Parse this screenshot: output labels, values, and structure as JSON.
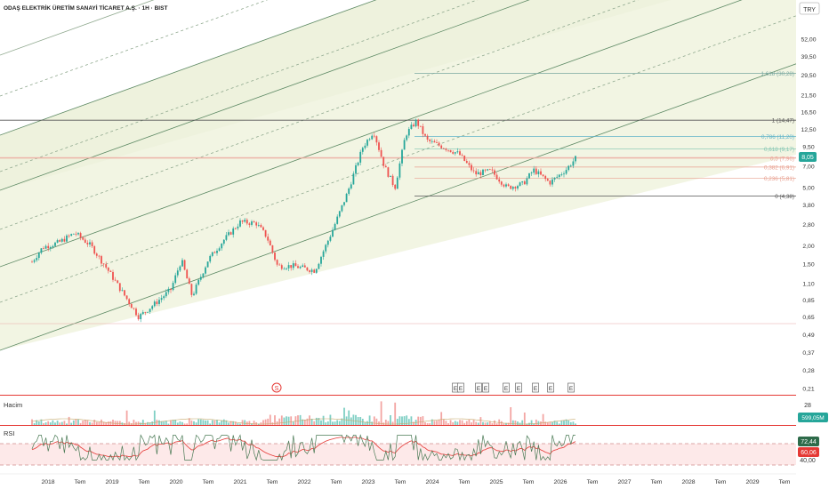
{
  "header": {
    "title": "ODAŞ ELEKTRİK ÜRETİM SANAYİ TİCARET A.Ş. · 1H · BIST",
    "currency": "TRY"
  },
  "colors": {
    "up": "#26a69a",
    "down": "#ef5350",
    "background": "#fdf8e1",
    "channel": "#4a7a55",
    "rsi_line": "#4a7a55",
    "rsi_signal": "#e53935"
  },
  "price_axis": {
    "ticks": [
      "52,00",
      "39,50",
      "29,50",
      "21,50",
      "16,50",
      "12,50",
      "9,50",
      "7,00",
      "5,00",
      "3,80",
      "2,80",
      "2,00",
      "1,50",
      "1,10",
      "0,85",
      "0,65",
      "0,49",
      "0,37",
      "0,28",
      "0,21"
    ],
    "last_price": "8,05"
  },
  "fib_levels": [
    {
      "label": "1,618 (30,28)",
      "color": "#7aa8a0"
    },
    {
      "label": "1 (14,47)",
      "color": "#555555"
    },
    {
      "label": "0,786 (11,20)",
      "color": "#5fb3c9"
    },
    {
      "label": "0,618 (9,17)",
      "color": "#7fc4b0"
    },
    {
      "label": "0,5 (7,96)",
      "color": "#e8a090"
    },
    {
      "label": "0,382 (6,91)",
      "color": "#e8a090"
    },
    {
      "label": "0,236 (5,81)",
      "color": "#e8a090"
    },
    {
      "label": "0 (4,38)",
      "color": "#555555"
    }
  ],
  "events": {
    "split_marker": "S",
    "earnings_markers": [
      "E",
      "E",
      "E",
      "E",
      "E",
      "E",
      "E",
      "E",
      "E"
    ]
  },
  "volume": {
    "label": "Hacim",
    "axis_tick": "28",
    "last_value": "599,05M"
  },
  "rsi": {
    "label": "RSI",
    "axis_tick": "40,00",
    "value": "72,44",
    "signal": "60,06"
  },
  "time_axis": {
    "ticks": [
      "2018",
      "Tem",
      "2019",
      "Tem",
      "2020",
      "Tem",
      "2021",
      "Tem",
      "2022",
      "Tem",
      "2023",
      "Tem",
      "2024",
      "Tem",
      "2025",
      "Tem",
      "2026",
      "Tem",
      "2027",
      "Tem",
      "2028",
      "Tem",
      "2029",
      "Tem"
    ]
  },
  "chart_data": {
    "type": "candlestick",
    "title": "ODAŞ ELEKTRİK ÜRETİM SANAYİ TİCARET A.Ş. · 1H · BIST",
    "y_scale": "log",
    "ylim": [
      0.21,
      52.0
    ],
    "x_range": [
      "2017-10",
      "2029-10"
    ],
    "close_path": [
      {
        "x": "2017-10",
        "y": 1.55
      },
      {
        "x": "2017-12",
        "y": 1.95
      },
      {
        "x": "2018-03",
        "y": 2.1
      },
      {
        "x": "2018-06",
        "y": 2.45
      },
      {
        "x": "2018-09",
        "y": 2.0
      },
      {
        "x": "2018-12",
        "y": 1.4
      },
      {
        "x": "2019-03",
        "y": 0.95
      },
      {
        "x": "2019-06",
        "y": 0.65
      },
      {
        "x": "2019-09",
        "y": 0.8
      },
      {
        "x": "2019-12",
        "y": 1.0
      },
      {
        "x": "2020-02",
        "y": 1.6
      },
      {
        "x": "2020-04",
        "y": 0.9
      },
      {
        "x": "2020-07",
        "y": 1.6
      },
      {
        "x": "2020-10",
        "y": 2.2
      },
      {
        "x": "2021-01",
        "y": 2.9
      },
      {
        "x": "2021-04",
        "y": 2.85
      },
      {
        "x": "2021-06",
        "y": 2.3
      },
      {
        "x": "2021-08",
        "y": 1.45
      },
      {
        "x": "2021-11",
        "y": 1.45
      },
      {
        "x": "2022-03",
        "y": 1.35
      },
      {
        "x": "2022-06",
        "y": 2.4
      },
      {
        "x": "2022-09",
        "y": 4.5
      },
      {
        "x": "2022-12",
        "y": 9.5
      },
      {
        "x": "2023-02",
        "y": 12.2
      },
      {
        "x": "2023-04",
        "y": 7.0
      },
      {
        "x": "2023-06",
        "y": 5.0
      },
      {
        "x": "2023-08",
        "y": 11.5
      },
      {
        "x": "2023-10",
        "y": 14.3
      },
      {
        "x": "2023-12",
        "y": 10.5
      },
      {
        "x": "2024-03",
        "y": 9.5
      },
      {
        "x": "2024-06",
        "y": 8.5
      },
      {
        "x": "2024-09",
        "y": 6.2
      },
      {
        "x": "2024-12",
        "y": 6.5
      },
      {
        "x": "2025-03",
        "y": 5.0
      },
      {
        "x": "2025-06",
        "y": 5.3
      },
      {
        "x": "2025-08",
        "y": 6.6
      },
      {
        "x": "2025-11",
        "y": 5.4
      },
      {
        "x": "2026-02",
        "y": 6.6
      },
      {
        "x": "2026-04",
        "y": 8.05
      }
    ],
    "fib_retracement": {
      "from": 14.47,
      "to": 4.38
    },
    "rsi_current": 72.44,
    "rsi_signal": 60.06,
    "volume_last": "599,05M"
  }
}
